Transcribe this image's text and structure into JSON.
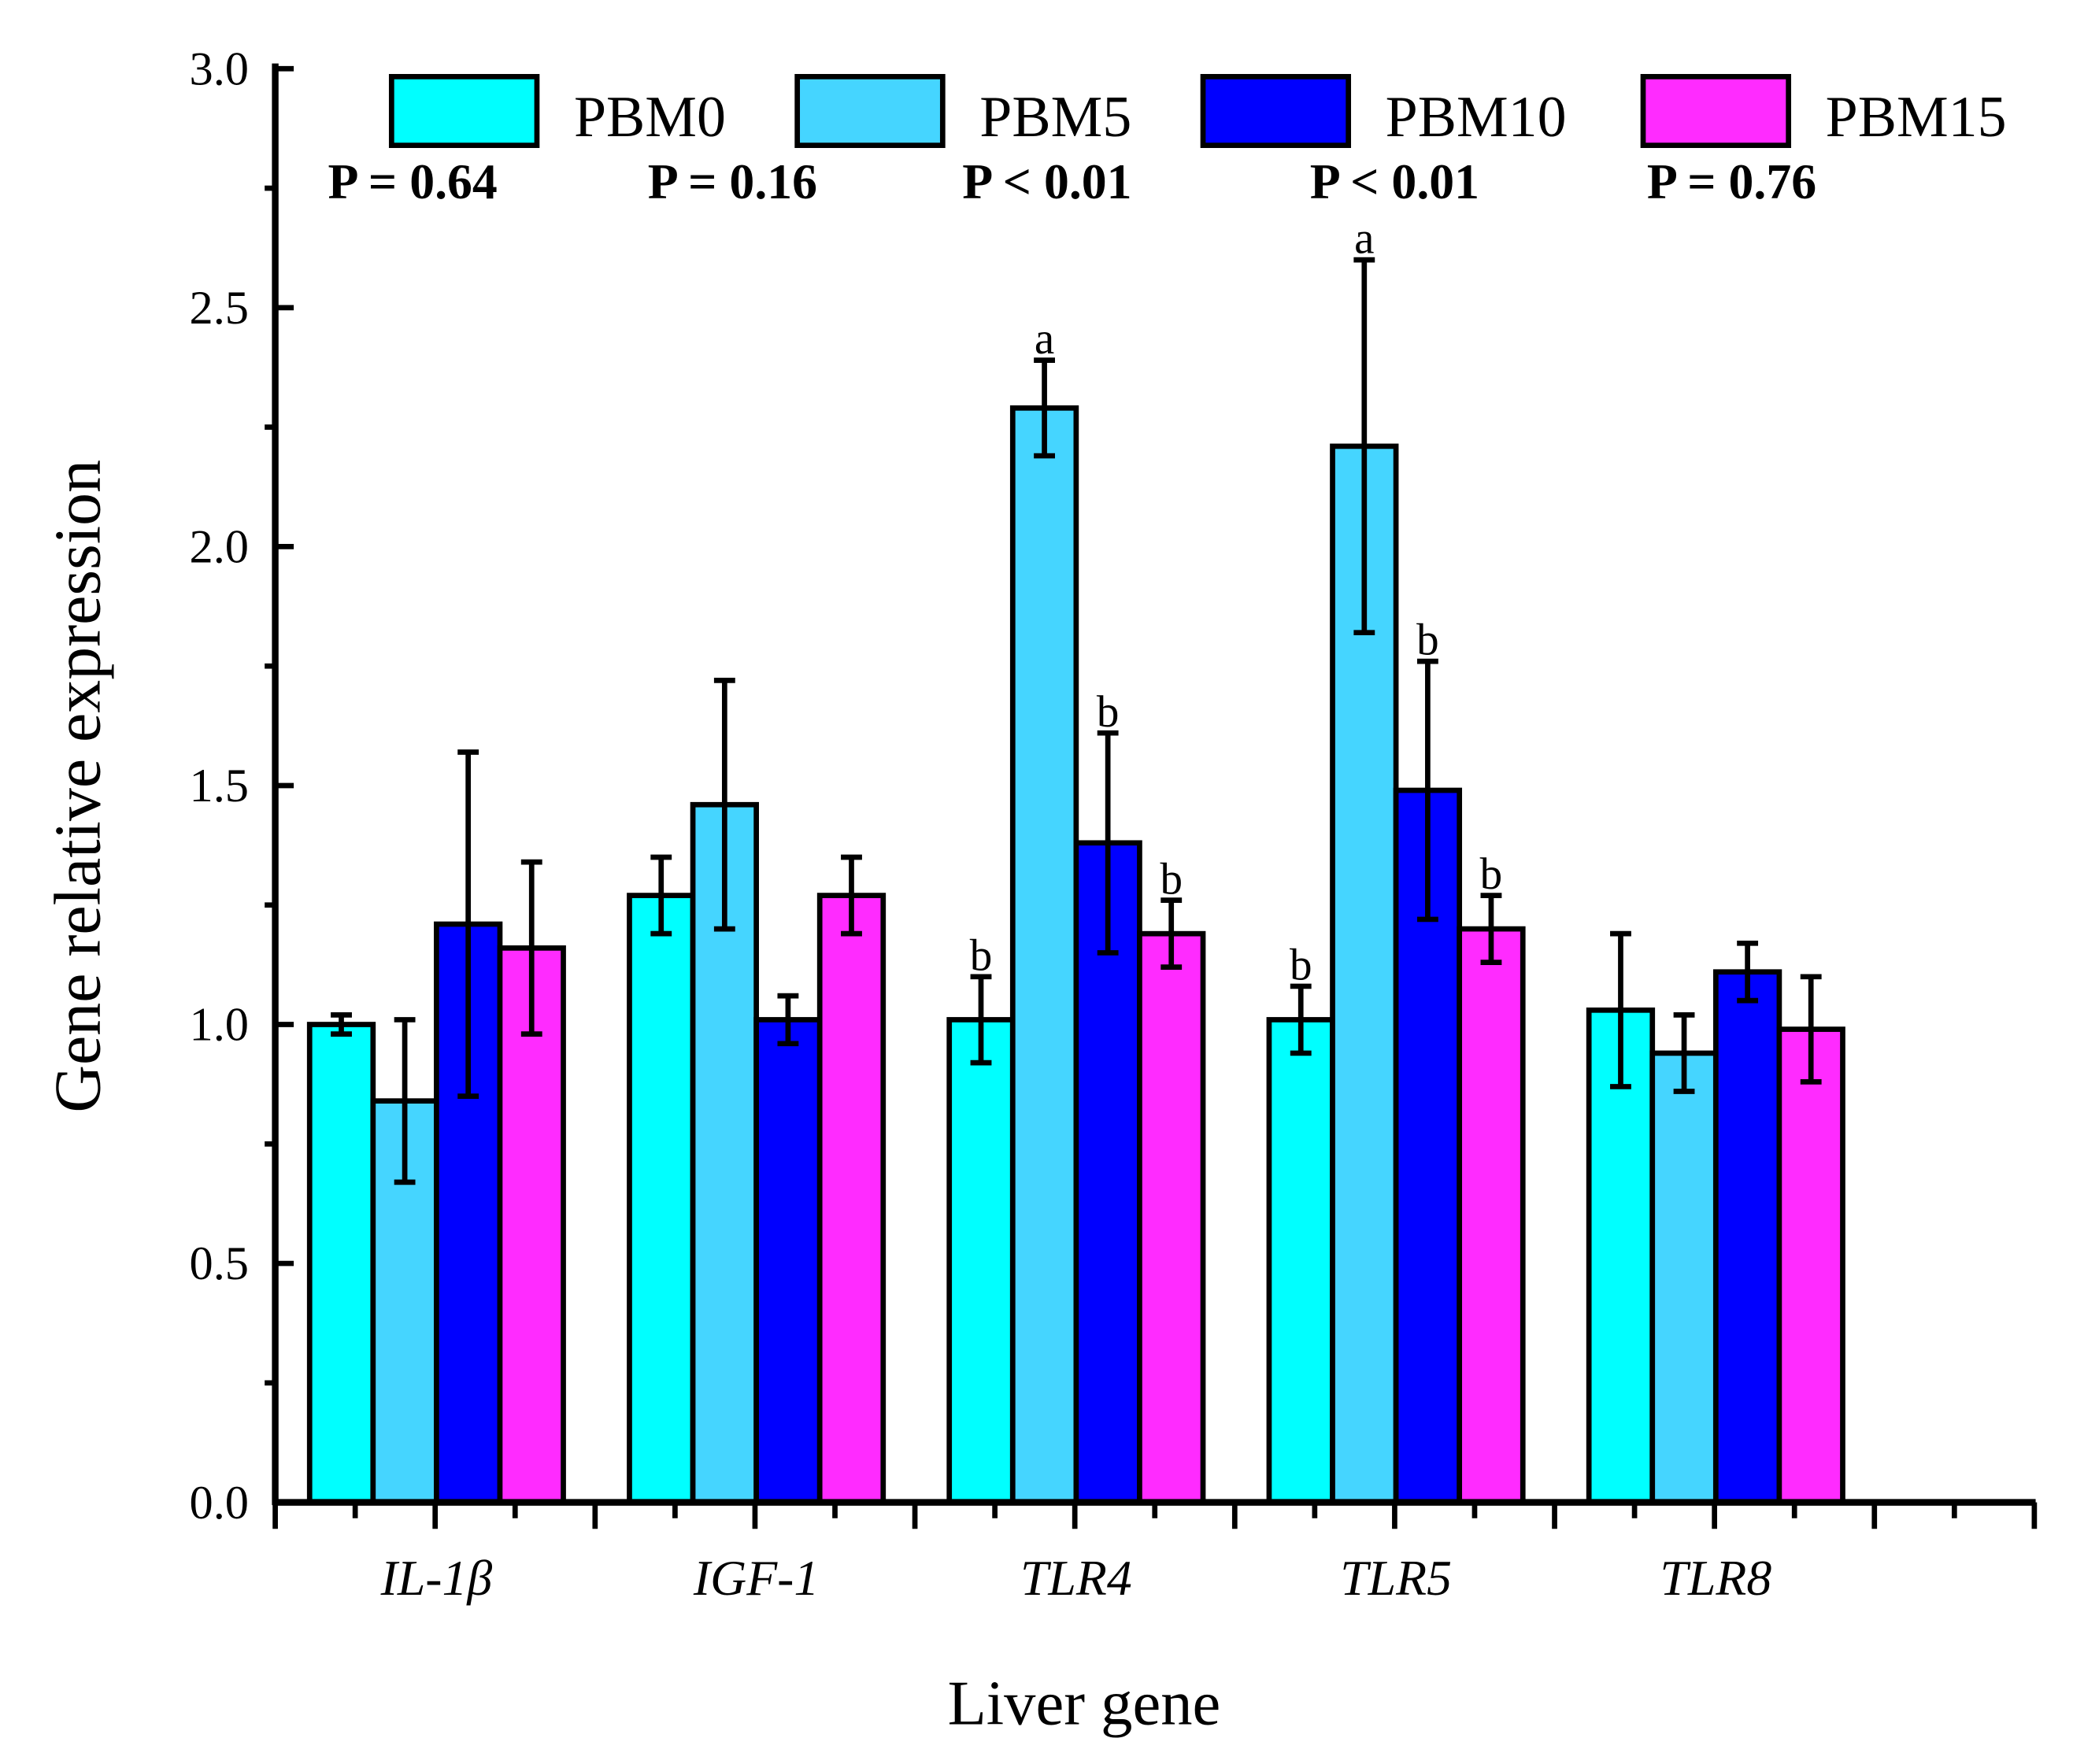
{
  "chart_data": {
    "type": "bar",
    "title": "",
    "xlabel": "Liver gene",
    "ylabel": "Gene relative expression",
    "ylim": [
      0,
      3.0
    ],
    "yticks": [
      "0.0",
      "0.5",
      "1.0",
      "1.5",
      "2.0",
      "2.5",
      "3.0"
    ],
    "categories": [
      "IL-1β",
      "IGF-1",
      "TLR4",
      "TLR5",
      "TLR8"
    ],
    "p_values": [
      "P = 0.64",
      "P = 0.16",
      "P < 0.01",
      "P < 0.01",
      "P = 0.76"
    ],
    "legend_position": "top",
    "series": [
      {
        "name": "PBM0",
        "color": "#00FFFF",
        "values": [
          1.0,
          1.27,
          1.01,
          1.01,
          1.03
        ],
        "errors": [
          0.02,
          0.08,
          0.09,
          0.07,
          0.16
        ],
        "letters": [
          "",
          "",
          "b",
          "b",
          ""
        ]
      },
      {
        "name": "PBM5",
        "color": "#45D5FF",
        "values": [
          0.84,
          1.46,
          2.29,
          2.21,
          0.94
        ],
        "errors": [
          0.17,
          0.26,
          0.1,
          0.39,
          0.08
        ],
        "letters": [
          "",
          "",
          "a",
          "a",
          ""
        ]
      },
      {
        "name": "PBM10",
        "color": "#0000FF",
        "values": [
          1.21,
          1.01,
          1.38,
          1.49,
          1.11
        ],
        "errors": [
          0.36,
          0.05,
          0.23,
          0.27,
          0.06
        ],
        "letters": [
          "",
          "",
          "b",
          "b",
          ""
        ]
      },
      {
        "name": "PBM15",
        "color": "#FF2BFF",
        "values": [
          1.16,
          1.27,
          1.19,
          1.2,
          0.99
        ],
        "errors": [
          0.18,
          0.08,
          0.07,
          0.07,
          0.11
        ],
        "letters": [
          "",
          "",
          "b",
          "b",
          ""
        ]
      }
    ]
  }
}
